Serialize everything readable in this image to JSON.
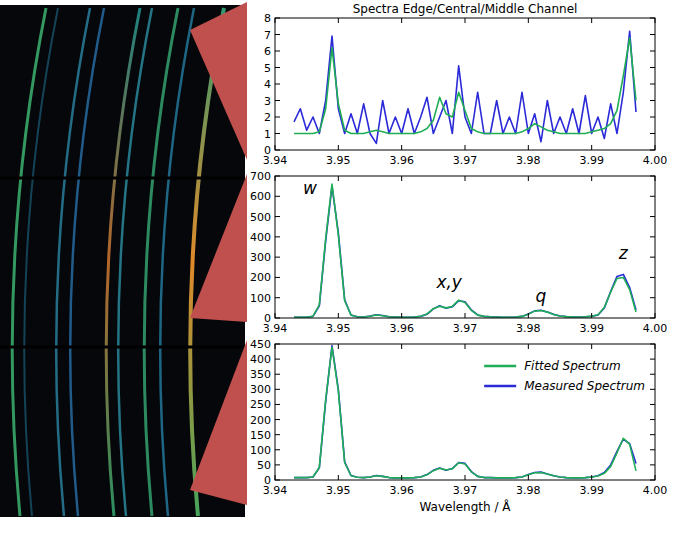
{
  "chart_data": [
    {
      "type": "line",
      "title": "Spectra Edge/Central/Middle Channel",
      "xlim": [
        3.94,
        4.0
      ],
      "xticks": [
        3.94,
        3.95,
        3.96,
        3.97,
        3.98,
        3.99,
        {
          "value": 4.0,
          "label": "4.00"
        }
      ],
      "ylim": [
        0,
        8
      ],
      "yticks": [
        0,
        1,
        2,
        3,
        4,
        5,
        6,
        7,
        8
      ],
      "x": [
        3.943,
        3.944,
        3.945,
        3.946,
        3.947,
        3.948,
        3.949,
        3.95,
        3.951,
        3.952,
        3.953,
        3.954,
        3.955,
        3.956,
        3.957,
        3.958,
        3.959,
        3.96,
        3.961,
        3.962,
        3.963,
        3.964,
        3.965,
        3.966,
        3.967,
        3.968,
        3.969,
        3.97,
        3.971,
        3.972,
        3.973,
        3.974,
        3.975,
        3.976,
        3.977,
        3.978,
        3.979,
        3.98,
        3.981,
        3.982,
        3.983,
        3.984,
        3.985,
        3.986,
        3.987,
        3.988,
        3.989,
        3.99,
        3.991,
        3.992,
        3.993,
        3.994,
        3.995,
        3.996,
        3.997
      ],
      "series": [
        {
          "color": "#1fae55",
          "values": [
            1,
            1,
            1,
            1,
            1.1,
            2.5,
            6.2,
            2.8,
            1.2,
            1,
            1,
            1,
            1.1,
            1.2,
            1.1,
            1,
            1,
            1,
            1,
            1,
            1.1,
            1.3,
            1.8,
            3.2,
            2.2,
            2.0,
            3.5,
            2.4,
            1.3,
            1.1,
            1,
            1,
            1,
            1,
            1,
            1,
            1.1,
            1.3,
            1.6,
            1.4,
            1.2,
            1.1,
            1,
            1,
            1,
            1,
            1,
            1.1,
            1.2,
            1.3,
            1.6,
            2.4,
            4.5,
            6.8,
            3.0
          ]
        },
        {
          "color": "#2a2ad8",
          "values": [
            1.7,
            2.5,
            1.2,
            2.0,
            1,
            3.0,
            6.9,
            2.5,
            1,
            2.2,
            1,
            2.8,
            1,
            0.4,
            3.0,
            1,
            2.0,
            1,
            2.5,
            1,
            2.0,
            3.2,
            1,
            2.0,
            3.0,
            1,
            5.1,
            2.0,
            1,
            3.5,
            1,
            1,
            3.0,
            1,
            2.0,
            1,
            3.5,
            1,
            2.2,
            0.5,
            3.0,
            1,
            2.0,
            1,
            2.5,
            1,
            3.3,
            1,
            2.0,
            0.7,
            2.8,
            1,
            3.5,
            7.2,
            2.3
          ]
        }
      ]
    },
    {
      "type": "line",
      "xlim": [
        3.94,
        4.0
      ],
      "xticks": [
        3.94,
        3.95,
        3.96,
        3.97,
        3.98,
        3.99,
        {
          "value": 4.0,
          "label": "4.00"
        }
      ],
      "ylim": [
        0,
        700
      ],
      "yticks": [
        0,
        100,
        200,
        300,
        400,
        500,
        600,
        700
      ],
      "x": [
        3.943,
        3.944,
        3.945,
        3.946,
        3.947,
        3.948,
        3.949,
        3.95,
        3.951,
        3.952,
        3.953,
        3.954,
        3.955,
        3.956,
        3.957,
        3.958,
        3.959,
        3.96,
        3.961,
        3.962,
        3.963,
        3.964,
        3.965,
        3.966,
        3.967,
        3.968,
        3.969,
        3.97,
        3.971,
        3.972,
        3.973,
        3.974,
        3.975,
        3.976,
        3.977,
        3.978,
        3.979,
        3.98,
        3.981,
        3.982,
        3.983,
        3.984,
        3.985,
        3.986,
        3.987,
        3.988,
        3.989,
        3.99,
        3.991,
        3.992,
        3.993,
        3.994,
        3.995,
        3.996,
        3.997
      ],
      "series": [
        {
          "color": "#1fae55",
          "values": [
            3,
            3,
            4,
            9,
            65,
            390,
            660,
            410,
            85,
            14,
            6,
            5,
            9,
            15,
            11,
            6,
            5,
            4,
            4,
            5,
            9,
            20,
            46,
            58,
            50,
            57,
            88,
            76,
            38,
            14,
            8,
            6,
            5,
            4,
            4,
            5,
            8,
            19,
            34,
            37,
            29,
            17,
            10,
            7,
            5,
            5,
            6,
            9,
            16,
            52,
            128,
            195,
            200,
            140,
            30
          ]
        },
        {
          "color": "#2a2ad8",
          "values": [
            3,
            3,
            4,
            8,
            60,
            380,
            650,
            420,
            90,
            15,
            6,
            5,
            10,
            16,
            12,
            6,
            5,
            4,
            4,
            5,
            8,
            18,
            45,
            60,
            48,
            55,
            85,
            80,
            40,
            15,
            8,
            6,
            5,
            4,
            4,
            5,
            8,
            20,
            35,
            38,
            30,
            18,
            10,
            7,
            5,
            5,
            6,
            8,
            15,
            50,
            130,
            205,
            215,
            150,
            40
          ]
        }
      ],
      "annotations": [
        {
          "text": "w",
          "x": 3.9455,
          "y": 610
        },
        {
          "text": "x,y",
          "x": 3.9675,
          "y": 150
        },
        {
          "text": "q",
          "x": 3.982,
          "y": 80
        },
        {
          "text": "z",
          "x": 3.995,
          "y": 290
        }
      ]
    },
    {
      "type": "line",
      "x_label": "Wavelength / Å",
      "xlim": [
        3.94,
        4.0
      ],
      "xticks": [
        3.94,
        3.95,
        3.96,
        3.97,
        3.98,
        3.99,
        {
          "value": 4.0,
          "label": "4.00"
        }
      ],
      "ylim": [
        0,
        450
      ],
      "yticks": [
        0,
        50,
        100,
        150,
        200,
        250,
        300,
        350,
        400,
        450
      ],
      "legend": "upper right",
      "x": [
        3.943,
        3.944,
        3.945,
        3.946,
        3.947,
        3.948,
        3.949,
        3.95,
        3.951,
        3.952,
        3.953,
        3.954,
        3.955,
        3.956,
        3.957,
        3.958,
        3.959,
        3.96,
        3.961,
        3.962,
        3.963,
        3.964,
        3.965,
        3.966,
        3.967,
        3.968,
        3.969,
        3.97,
        3.971,
        3.972,
        3.973,
        3.974,
        3.975,
        3.976,
        3.977,
        3.978,
        3.979,
        3.98,
        3.981,
        3.982,
        3.983,
        3.984,
        3.985,
        3.986,
        3.987,
        3.988,
        3.989,
        3.99,
        3.991,
        3.992,
        3.993,
        3.994,
        3.995,
        3.996,
        3.997
      ],
      "series": [
        {
          "name": "Fitted Spectrum",
          "color": "#1fae55",
          "values": [
            8,
            8,
            8,
            10,
            42,
            265,
            440,
            295,
            58,
            14,
            9,
            8,
            10,
            14,
            12,
            8,
            7,
            7,
            7,
            8,
            10,
            17,
            31,
            39,
            33,
            37,
            57,
            53,
            27,
            12,
            8,
            8,
            7,
            7,
            7,
            8,
            10,
            17,
            24,
            25,
            20,
            14,
            10,
            8,
            7,
            7,
            8,
            10,
            13,
            22,
            45,
            90,
            138,
            118,
            30
          ]
        },
        {
          "name": "Measured Spectrum",
          "color": "#2a2ad8",
          "values": [
            8,
            8,
            8,
            10,
            40,
            260,
            445,
            300,
            60,
            15,
            9,
            8,
            10,
            15,
            12,
            8,
            7,
            7,
            7,
            8,
            10,
            18,
            32,
            40,
            32,
            38,
            58,
            55,
            28,
            12,
            8,
            8,
            7,
            7,
            7,
            8,
            10,
            18,
            25,
            26,
            20,
            14,
            10,
            8,
            7,
            7,
            8,
            10,
            14,
            25,
            50,
            95,
            135,
            120,
            55
          ]
        }
      ]
    }
  ]
}
